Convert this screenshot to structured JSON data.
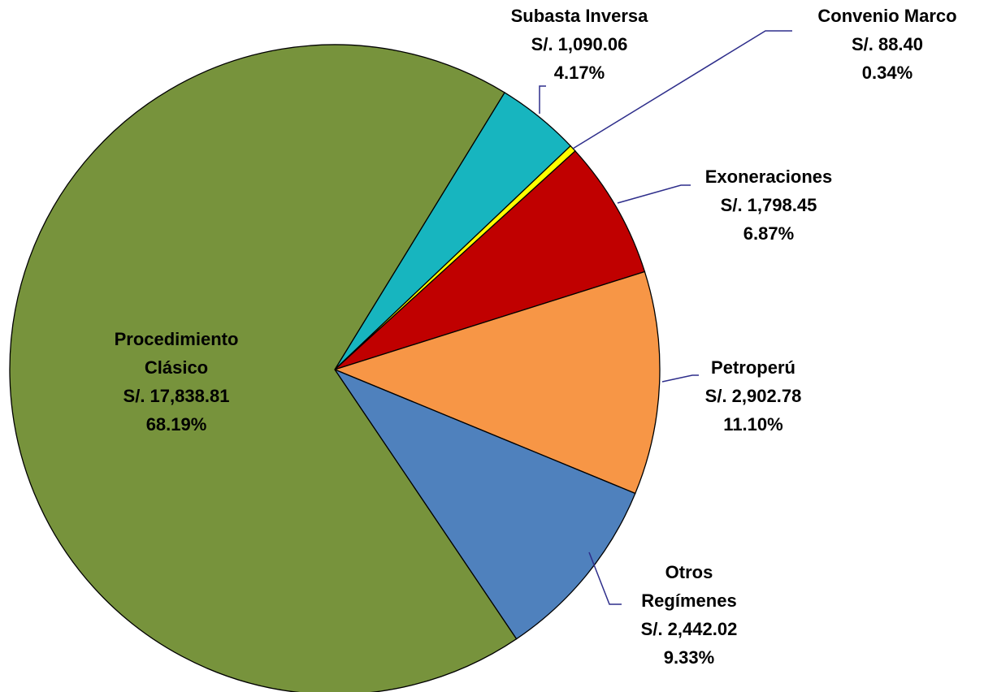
{
  "chart_data": {
    "type": "pie",
    "categories": [
      "Subasta Inversa",
      "Convenio Marco",
      "Exoneraciones",
      "Petroperú",
      "Otros Regímenes",
      "Procedimiento Clásico"
    ],
    "values": [
      1090.06,
      88.4,
      1798.45,
      2902.78,
      2442.02,
      17838.81
    ],
    "value_labels": [
      "S/. 1,090.06",
      "S/. 88.40",
      "S/. 1,798.45",
      "S/. 2,902.78",
      "S/. 2,442.02",
      "S/. 17,838.81"
    ],
    "percent_labels": [
      "4.17%",
      "0.34%",
      "6.87%",
      "11.10%",
      "9.33%",
      "68.19%"
    ],
    "colors": [
      "#17b5bf",
      "#ffff00",
      "#c00000",
      "#f79646",
      "#4f81bd",
      "#77933c"
    ]
  }
}
